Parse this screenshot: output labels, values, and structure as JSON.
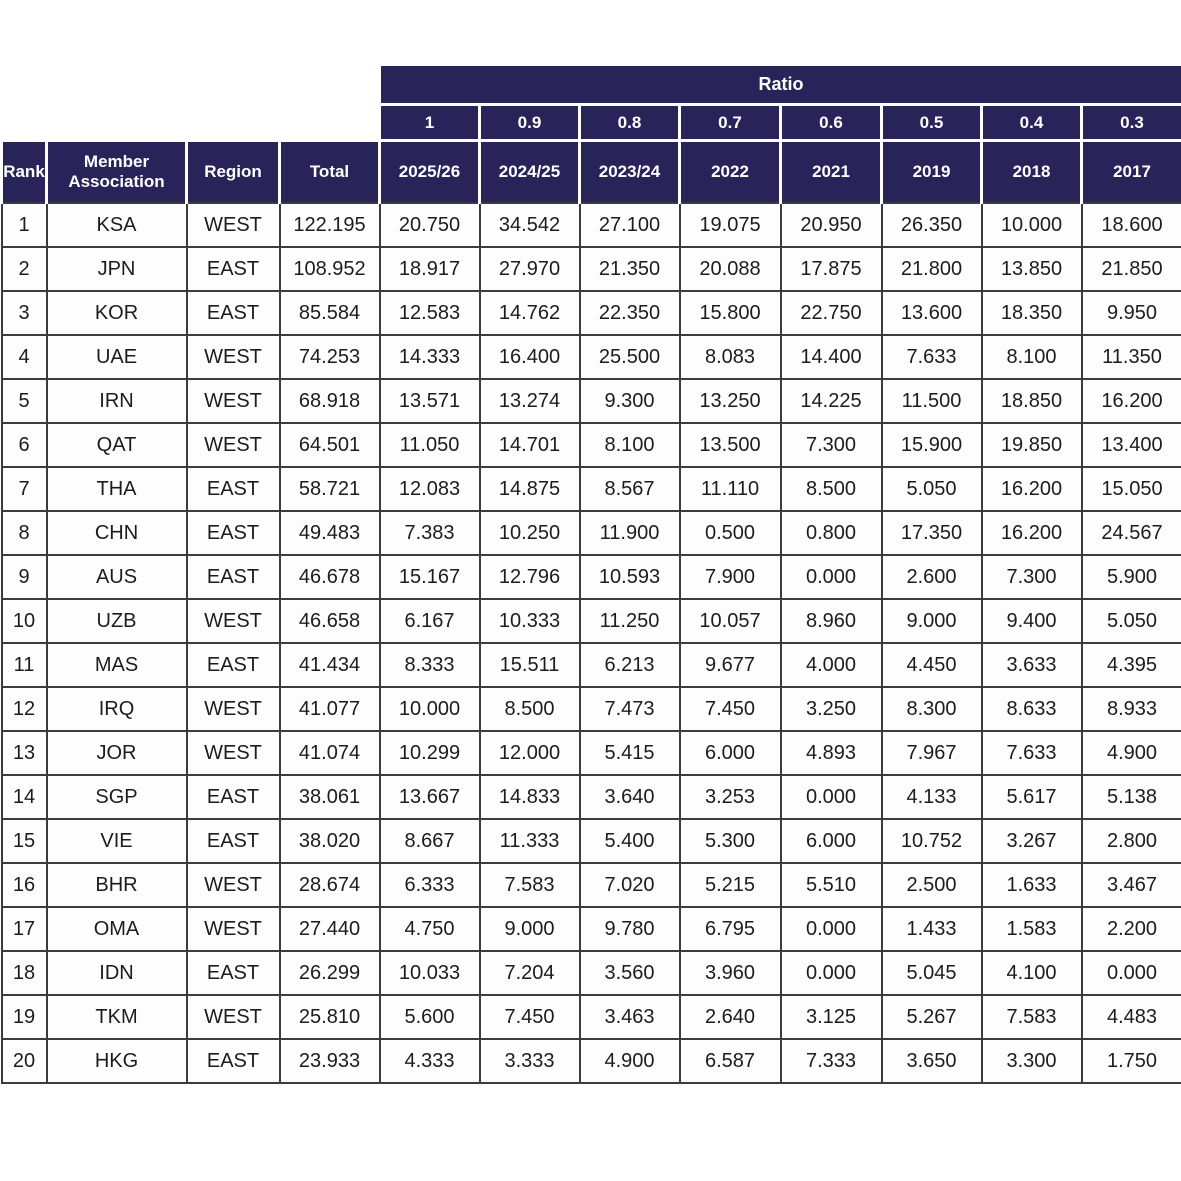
{
  "colors": {
    "header_bg": "#282359",
    "header_text": "#ffffff",
    "body_text": "#1c1c1c",
    "grid_line": "#3c3c3c"
  },
  "chart_data": {
    "type": "table",
    "ratio_header": {
      "label": "Ratio",
      "values": [
        "1",
        "0.9",
        "0.8",
        "0.7",
        "0.6",
        "0.5",
        "0.4",
        "0.3"
      ]
    },
    "columns": [
      "Rank",
      "Member Association",
      "Region",
      "Total",
      "2025/26",
      "2024/25",
      "2023/24",
      "2022",
      "2021",
      "2019",
      "2018",
      "2017"
    ],
    "rows": [
      {
        "rank": "1",
        "association": "KSA",
        "region": "WEST",
        "total": "122.195",
        "values": [
          "20.750",
          "34.542",
          "27.100",
          "19.075",
          "20.950",
          "26.350",
          "10.000",
          "18.600"
        ]
      },
      {
        "rank": "2",
        "association": "JPN",
        "region": "EAST",
        "total": "108.952",
        "values": [
          "18.917",
          "27.970",
          "21.350",
          "20.088",
          "17.875",
          "21.800",
          "13.850",
          "21.850"
        ]
      },
      {
        "rank": "3",
        "association": "KOR",
        "region": "EAST",
        "total": "85.584",
        "values": [
          "12.583",
          "14.762",
          "22.350",
          "15.800",
          "22.750",
          "13.600",
          "18.350",
          "9.950"
        ]
      },
      {
        "rank": "4",
        "association": "UAE",
        "region": "WEST",
        "total": "74.253",
        "values": [
          "14.333",
          "16.400",
          "25.500",
          "8.083",
          "14.400",
          "7.633",
          "8.100",
          "11.350"
        ]
      },
      {
        "rank": "5",
        "association": "IRN",
        "region": "WEST",
        "total": "68.918",
        "values": [
          "13.571",
          "13.274",
          "9.300",
          "13.250",
          "14.225",
          "11.500",
          "18.850",
          "16.200"
        ]
      },
      {
        "rank": "6",
        "association": "QAT",
        "region": "WEST",
        "total": "64.501",
        "values": [
          "11.050",
          "14.701",
          "8.100",
          "13.500",
          "7.300",
          "15.900",
          "19.850",
          "13.400"
        ]
      },
      {
        "rank": "7",
        "association": "THA",
        "region": "EAST",
        "total": "58.721",
        "values": [
          "12.083",
          "14.875",
          "8.567",
          "11.110",
          "8.500",
          "5.050",
          "16.200",
          "15.050"
        ]
      },
      {
        "rank": "8",
        "association": "CHN",
        "region": "EAST",
        "total": "49.483",
        "values": [
          "7.383",
          "10.250",
          "11.900",
          "0.500",
          "0.800",
          "17.350",
          "16.200",
          "24.567"
        ]
      },
      {
        "rank": "9",
        "association": "AUS",
        "region": "EAST",
        "total": "46.678",
        "values": [
          "15.167",
          "12.796",
          "10.593",
          "7.900",
          "0.000",
          "2.600",
          "7.300",
          "5.900"
        ]
      },
      {
        "rank": "10",
        "association": "UZB",
        "region": "WEST",
        "total": "46.658",
        "values": [
          "6.167",
          "10.333",
          "11.250",
          "10.057",
          "8.960",
          "9.000",
          "9.400",
          "5.050"
        ]
      },
      {
        "rank": "11",
        "association": "MAS",
        "region": "EAST",
        "total": "41.434",
        "values": [
          "8.333",
          "15.511",
          "6.213",
          "9.677",
          "4.000",
          "4.450",
          "3.633",
          "4.395"
        ]
      },
      {
        "rank": "12",
        "association": "IRQ",
        "region": "WEST",
        "total": "41.077",
        "values": [
          "10.000",
          "8.500",
          "7.473",
          "7.450",
          "3.250",
          "8.300",
          "8.633",
          "8.933"
        ]
      },
      {
        "rank": "13",
        "association": "JOR",
        "region": "WEST",
        "total": "41.074",
        "values": [
          "10.299",
          "12.000",
          "5.415",
          "6.000",
          "4.893",
          "7.967",
          "7.633",
          "4.900"
        ]
      },
      {
        "rank": "14",
        "association": "SGP",
        "region": "EAST",
        "total": "38.061",
        "values": [
          "13.667",
          "14.833",
          "3.640",
          "3.253",
          "0.000",
          "4.133",
          "5.617",
          "5.138"
        ]
      },
      {
        "rank": "15",
        "association": "VIE",
        "region": "EAST",
        "total": "38.020",
        "values": [
          "8.667",
          "11.333",
          "5.400",
          "5.300",
          "6.000",
          "10.752",
          "3.267",
          "2.800"
        ]
      },
      {
        "rank": "16",
        "association": "BHR",
        "region": "WEST",
        "total": "28.674",
        "values": [
          "6.333",
          "7.583",
          "7.020",
          "5.215",
          "5.510",
          "2.500",
          "1.633",
          "3.467"
        ]
      },
      {
        "rank": "17",
        "association": "OMA",
        "region": "WEST",
        "total": "27.440",
        "values": [
          "4.750",
          "9.000",
          "9.780",
          "6.795",
          "0.000",
          "1.433",
          "1.583",
          "2.200"
        ]
      },
      {
        "rank": "18",
        "association": "IDN",
        "region": "EAST",
        "total": "26.299",
        "values": [
          "10.033",
          "7.204",
          "3.560",
          "3.960",
          "0.000",
          "5.045",
          "4.100",
          "0.000"
        ]
      },
      {
        "rank": "19",
        "association": "TKM",
        "region": "WEST",
        "total": "25.810",
        "values": [
          "5.600",
          "7.450",
          "3.463",
          "2.640",
          "3.125",
          "5.267",
          "7.583",
          "4.483"
        ]
      },
      {
        "rank": "20",
        "association": "HKG",
        "region": "EAST",
        "total": "23.933",
        "values": [
          "4.333",
          "3.333",
          "4.900",
          "6.587",
          "7.333",
          "3.650",
          "3.300",
          "1.750"
        ]
      }
    ]
  }
}
